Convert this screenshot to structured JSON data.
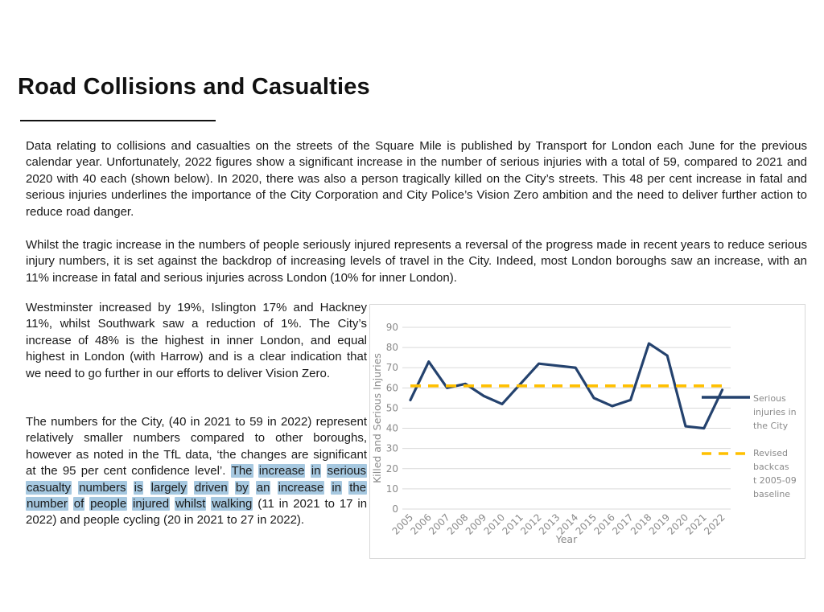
{
  "page": {
    "title": "Road Collisions and Casualties"
  },
  "colors": {
    "series_blue": "#24426E",
    "baseline_yellow": "#FFC000",
    "grid_gray": "#D9D9D9",
    "chart_text_gray": "#8A8A8A",
    "highlight_blue": "#A6C8E0"
  },
  "paragraphs": {
    "intro": "Data relating to collisions and casualties on the streets of the Square Mile is published by Transport for London each June for the previous calendar year. Unfortunately, 2022 figures show a significant increase in the number of serious injuries with a total of 59, compared to 2021 and 2020 with 40 each (shown below). In 2020, there was also a person tragically killed on the City’s streets. This 48 per cent increase in fatal and serious injuries underlines the importance of the City Corporation and City Police’s Vision Zero ambition and the need to deliver further action to reduce road danger.",
    "context": "Whilst the tragic increase in the numbers of people seriously injured represents a reversal of the progress made in recent years to reduce serious injury numbers, it is set against the backdrop of increasing levels of travel in the City. Indeed, most London boroughs saw an increase, with an 11% increase in fatal and serious injuries across London (10% for inner London).",
    "boroughs": "Westminster increased by 19%, Islington 17% and Hackney 11%, whilst Southwark saw a reduction of 1%. The City’s increase of 48% is the highest in inner London, and equal highest in London (with Harrow) and is a clear indication that we need to go further in our efforts to deliver Vision Zero.",
    "city_numbers_segments": [
      {
        "text": "The numbers for the City, (40 in 2021 to 59 in 2022) represent relatively smaller numbers compared to other boroughs, however as noted in the TfL data, ‘the changes are significant at the 95 per cent confidence level’. ",
        "highlight": false
      },
      {
        "text": "The increase in serious casualty numbers is largely driven by an increase in the number of people injured whilst walking",
        "highlight": true
      },
      {
        "text": " (11 in 2021 to 17 in 2022) and people cycling (20 in 2021 to 27 in 2022).",
        "highlight": false
      }
    ]
  },
  "chart_data": {
    "type": "line",
    "title": "",
    "xlabel": "Year",
    "ylabel": "Killed and Serious Injuries",
    "ylim": [
      0,
      90
    ],
    "yticks": [
      0,
      10,
      20,
      30,
      40,
      50,
      60,
      70,
      80,
      90
    ],
    "grid": true,
    "legend_position": "right",
    "x": [
      "2005",
      "2006",
      "2007",
      "2008",
      "2009",
      "2010",
      "2011",
      "2012",
      "2013",
      "2014",
      "2015",
      "2016",
      "2017",
      "2018",
      "2019",
      "2020",
      "2021",
      "2022"
    ],
    "series": [
      {
        "name": "Serious injuries in the City",
        "legend_lines": [
          "Serious",
          "injuries in",
          "the City"
        ],
        "color": "#24426E",
        "dash": false,
        "values": [
          54,
          73,
          60,
          62,
          56,
          52,
          62,
          72,
          71,
          70,
          55,
          51,
          54,
          82,
          76,
          41,
          40,
          59
        ]
      },
      {
        "name": "Revised backcast 2005-09 baseline",
        "legend_lines": [
          "Revised",
          "backcas",
          "t 2005-09",
          "baseline"
        ],
        "color": "#FFC000",
        "dash": true,
        "values": [
          61,
          61,
          61,
          61,
          61,
          61,
          61,
          61,
          61,
          61,
          61,
          61,
          61,
          61,
          61,
          61,
          61,
          61
        ]
      }
    ]
  }
}
